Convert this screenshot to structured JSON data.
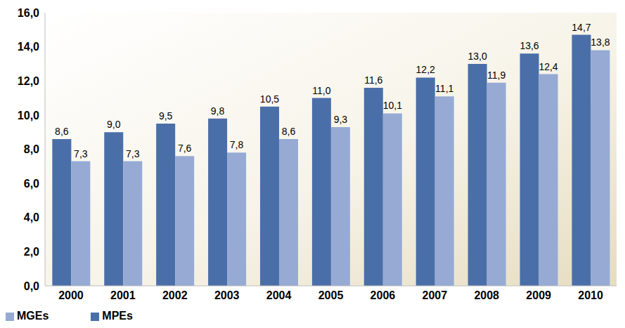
{
  "chart_data": {
    "type": "bar",
    "categories": [
      "2000",
      "2001",
      "2002",
      "2003",
      "2004",
      "2005",
      "2006",
      "2007",
      "2008",
      "2009",
      "2010"
    ],
    "series": [
      {
        "name": "MPEs",
        "color": "#4a6fa8",
        "values": [
          8.6,
          9.0,
          9.5,
          9.8,
          10.5,
          11.0,
          11.6,
          12.2,
          13.0,
          13.6,
          14.7
        ],
        "value_labels": [
          "8,6",
          "9,0",
          "9,5",
          "9,8",
          "10,5",
          "11,0",
          "11,6",
          "12,2",
          "13,0",
          "13,6",
          "14,7"
        ]
      },
      {
        "name": "MGEs",
        "color": "#96aad4",
        "values": [
          7.3,
          7.3,
          7.6,
          7.8,
          8.6,
          9.3,
          10.1,
          11.1,
          11.9,
          12.4,
          13.8
        ],
        "value_labels": [
          "7,3",
          "7,3",
          "7,6",
          "7,8",
          "8,6",
          "9,3",
          "10,1",
          "11,1",
          "11,9",
          "12,4",
          "13,8"
        ]
      }
    ],
    "ylim": [
      0,
      16
    ],
    "yticks": [
      {
        "value": 0,
        "label": "0,0"
      },
      {
        "value": 2,
        "label": "2,0"
      },
      {
        "value": 4,
        "label": "4,0"
      },
      {
        "value": 6,
        "label": "6,0"
      },
      {
        "value": 8,
        "label": "8,0"
      },
      {
        "value": 10,
        "label": "10,0"
      },
      {
        "value": 12,
        "label": "12,0"
      },
      {
        "value": 14,
        "label": "14,0"
      },
      {
        "value": 16,
        "label": "16,0"
      }
    ],
    "grid": false,
    "legend": "bottom left",
    "data_labels": true
  }
}
